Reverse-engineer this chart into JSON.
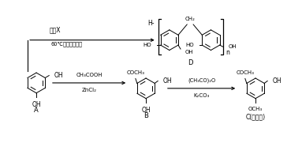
{
  "background_color": "#ffffff",
  "reagent_x_label": "试剂X",
  "condition_top": "60℃，草酸催化剂",
  "cond_ab_1": "CH₃COOH",
  "cond_ab_2": "ZnCl₂",
  "cond_bc_1": "(CH₃CO)₂O",
  "cond_bc_2": "K₂CO₃",
  "label_A": "A",
  "label_B": "B",
  "label_C": "C(丹皮酔)",
  "label_D": "D",
  "mol_color": "#000000",
  "reagent_color": "#000000",
  "arrow_color": "#000000"
}
